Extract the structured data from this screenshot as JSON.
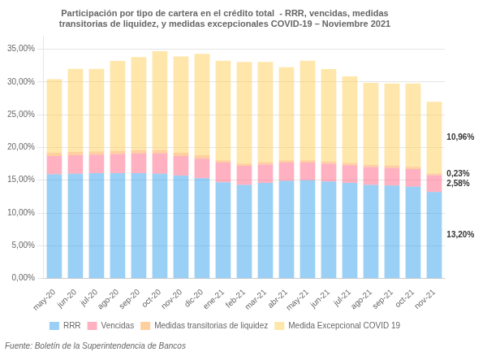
{
  "chart_data": {
    "type": "bar",
    "title": [
      "Participación por tipo de cartera en el crédito total  - RRR, vencidas, medidas",
      "transitorias de liquidez, y medidas excepcionales COVID-19 – Noviembre 2021"
    ],
    "source": "Fuente: Boletín de la Superintendencia de Bancos",
    "categories": [
      "may-20",
      "jun-20",
      "jul-20",
      "ago-20",
      "sep-20",
      "oct-20",
      "nov-20",
      "dic-20",
      "ene-21",
      "feb-21",
      "mar-21",
      "abr-21",
      "may-21",
      "jun-21",
      "jul-21",
      "ago-21",
      "sep-21",
      "oct-21",
      "nov-21"
    ],
    "series": [
      {
        "name": "RRR",
        "values": [
          15.9,
          16.0,
          16.1,
          16.1,
          16.1,
          16.0,
          15.7,
          15.3,
          14.7,
          14.3,
          14.6,
          14.9,
          15.0,
          14.8,
          14.6,
          14.3,
          14.2,
          14.0,
          13.2
        ],
        "value_labels": [
          null,
          null,
          null,
          null,
          null,
          null,
          null,
          null,
          null,
          null,
          null,
          null,
          null,
          null,
          null,
          null,
          null,
          null,
          "13,20%"
        ]
      },
      {
        "name": "Vencidas",
        "values": [
          2.8,
          2.8,
          2.8,
          2.9,
          3.0,
          3.1,
          3.0,
          3.0,
          3.0,
          2.9,
          2.8,
          2.8,
          2.7,
          2.7,
          2.7,
          2.7,
          2.7,
          2.7,
          2.58
        ],
        "value_labels": [
          null,
          null,
          null,
          null,
          null,
          null,
          null,
          null,
          null,
          null,
          null,
          null,
          null,
          null,
          null,
          null,
          null,
          null,
          "2,58%"
        ]
      },
      {
        "name": "Medidas transitorias de liquidez",
        "values": [
          0.5,
          0.5,
          0.5,
          0.5,
          0.5,
          0.5,
          0.5,
          0.5,
          0.35,
          0.35,
          0.35,
          0.35,
          0.35,
          0.35,
          0.35,
          0.35,
          0.35,
          0.35,
          0.23
        ],
        "value_labels": [
          null,
          null,
          null,
          null,
          null,
          null,
          null,
          null,
          null,
          null,
          null,
          null,
          null,
          null,
          null,
          null,
          null,
          null,
          "0,23%"
        ]
      },
      {
        "name": "Medida Excepcional COVID 19",
        "values": [
          11.2,
          12.7,
          12.6,
          13.7,
          14.2,
          15.1,
          14.7,
          15.5,
          15.2,
          15.5,
          15.3,
          14.2,
          15.2,
          14.1,
          13.2,
          12.5,
          12.5,
          12.7,
          10.96
        ],
        "value_labels": [
          null,
          null,
          null,
          null,
          null,
          null,
          null,
          null,
          null,
          null,
          null,
          null,
          null,
          null,
          null,
          null,
          null,
          null,
          "10,96%"
        ]
      }
    ],
    "stacked": true,
    "ylim": [
      0,
      37
    ],
    "yticks": [
      {
        "value": 0.0,
        "label": "0,00%"
      },
      {
        "value": 5.0,
        "label": "5,00%"
      },
      {
        "value": 10.0,
        "label": "10,00%"
      },
      {
        "value": 15.0,
        "label": "15,00%"
      },
      {
        "value": 20.0,
        "label": "20,00%"
      },
      {
        "value": 25.0,
        "label": "25,00%"
      },
      {
        "value": 30.0,
        "label": "30,00%"
      },
      {
        "value": 35.0,
        "label": "35,00%"
      }
    ],
    "grid": true,
    "legend": "bottom"
  }
}
